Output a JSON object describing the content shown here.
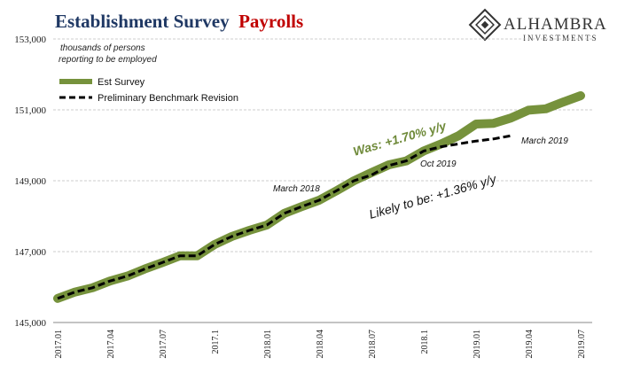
{
  "title": {
    "part1": "Establishment Survey",
    "part2": "Payrolls"
  },
  "logo": {
    "name": "ALHAMBRA",
    "sub": "INVESTMENTS"
  },
  "chart_data": {
    "type": "line",
    "title": "Establishment Survey Payrolls",
    "unit_note": [
      "thousands of persons",
      "reporting to be employed"
    ],
    "ylim": [
      145000,
      153000
    ],
    "yticks": [
      145000,
      147000,
      149000,
      151000,
      153000
    ],
    "ytick_labels": [
      "145,000",
      "147,000",
      "149,000",
      "151,000",
      "153,000"
    ],
    "xtick_labels": [
      "2017.01",
      "2017.04",
      "2017.07",
      "2017.1",
      "2018.01",
      "2018.04",
      "2018.07",
      "2018.1",
      "2019.01",
      "2019.04",
      "2019.07"
    ],
    "grid": "horizontal dashed",
    "legend_position": "top-left",
    "colors": {
      "est_survey": "#76923c",
      "benchmark": "#000000",
      "title_main": "#1f3864",
      "title_accent": "#c00000",
      "annotation_green": "#6f8a3a"
    },
    "series": [
      {
        "name": "Est Survey",
        "x": [
          "2017.01",
          "2017.02",
          "2017.03",
          "2017.04",
          "2017.05",
          "2017.06",
          "2017.07",
          "2017.08",
          "2017.09",
          "2017.10",
          "2017.11",
          "2017.12",
          "2018.01",
          "2018.02",
          "2018.03",
          "2018.04",
          "2018.05",
          "2018.06",
          "2018.07",
          "2018.08",
          "2018.09",
          "2018.10",
          "2018.11",
          "2018.12",
          "2019.01",
          "2019.02",
          "2019.03",
          "2019.04",
          "2019.05",
          "2019.06",
          "2019.07"
        ],
        "values": [
          145680,
          145860,
          145980,
          146170,
          146310,
          146510,
          146690,
          146880,
          146880,
          147200,
          147430,
          147600,
          147750,
          148080,
          148270,
          148450,
          148720,
          149000,
          149230,
          149450,
          149560,
          149840,
          150040,
          150270,
          150600,
          150620,
          150770,
          150990,
          151030,
          151220,
          151400
        ]
      },
      {
        "name": "Preliminary Benchmark Revision",
        "x": [
          "2017.01",
          "2017.02",
          "2017.03",
          "2017.04",
          "2017.05",
          "2017.06",
          "2017.07",
          "2017.08",
          "2017.09",
          "2017.10",
          "2017.11",
          "2017.12",
          "2018.01",
          "2018.02",
          "2018.03",
          "2018.04",
          "2018.05",
          "2018.06",
          "2018.07",
          "2018.08",
          "2018.09",
          "2018.10",
          "2018.11",
          "2018.12",
          "2019.01",
          "2019.02",
          "2019.03"
        ],
        "values": [
          145680,
          145860,
          145980,
          146170,
          146310,
          146510,
          146690,
          146880,
          146880,
          147200,
          147430,
          147600,
          147750,
          148080,
          148270,
          148450,
          148720,
          149000,
          149160,
          149430,
          149560,
          149840,
          149960,
          150040,
          150120,
          150180,
          150270
        ]
      }
    ],
    "annotations": {
      "was": "Was: +1.70% y/y",
      "likely": "Likely to be: +1.36% y/y",
      "march_2018": "March 2018",
      "oct_2019": "Oct 2019",
      "march_2019": "March 2019"
    }
  }
}
